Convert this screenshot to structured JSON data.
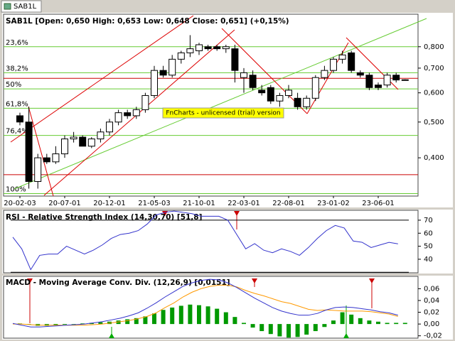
{
  "window": {
    "tab": "SAB1L"
  },
  "chart_data": [
    {
      "type": "candlestick",
      "title": "SAB1L [Open: 0,650  High: 0,653  Low: 0,648  Close: 0,651] (+0,15%)",
      "watermark": "FnCharts - unlicensed (trial) version",
      "categories": [
        "20-02-03",
        null,
        null,
        null,
        null,
        "20-07-01",
        null,
        null,
        null,
        null,
        "20-12-01",
        null,
        null,
        null,
        null,
        "21-05-03",
        null,
        null,
        null,
        null,
        "21-10-01",
        null,
        null,
        null,
        null,
        "22-03-01",
        null,
        null,
        null,
        null,
        "22-08-01",
        null,
        null,
        null,
        null,
        "23-01-02",
        null,
        null,
        null,
        null,
        "23-06-01",
        null,
        null,
        null
      ],
      "open": [
        0.52,
        0.5,
        0.345,
        0.4,
        0.39,
        0.41,
        0.45,
        0.455,
        0.43,
        0.45,
        0.47,
        0.5,
        0.53,
        0.52,
        0.54,
        0.59,
        0.69,
        0.67,
        0.74,
        0.77,
        0.78,
        0.8,
        0.8,
        0.79,
        0.79,
        0.66,
        0.67,
        0.61,
        0.62,
        0.57,
        0.59,
        0.58,
        0.55,
        0.58,
        0.66,
        0.69,
        0.74,
        0.77,
        0.68,
        0.67,
        0.63,
        0.63,
        0.67,
        0.65
      ],
      "high": [
        0.53,
        0.55,
        0.41,
        0.41,
        0.43,
        0.46,
        0.47,
        0.46,
        0.455,
        0.48,
        0.51,
        0.54,
        0.54,
        0.55,
        0.6,
        0.71,
        0.71,
        0.76,
        0.78,
        0.86,
        0.82,
        0.81,
        0.81,
        0.81,
        0.81,
        0.7,
        0.69,
        0.63,
        0.63,
        0.6,
        0.63,
        0.6,
        0.59,
        0.67,
        0.71,
        0.75,
        0.78,
        0.78,
        0.69,
        0.68,
        0.64,
        0.68,
        0.68,
        0.653
      ],
      "low": [
        0.49,
        0.33,
        0.33,
        0.385,
        0.385,
        0.4,
        0.44,
        0.43,
        0.425,
        0.44,
        0.46,
        0.49,
        0.51,
        0.51,
        0.53,
        0.58,
        0.66,
        0.66,
        0.72,
        0.75,
        0.76,
        0.78,
        0.78,
        0.77,
        0.64,
        0.6,
        0.61,
        0.59,
        0.56,
        0.55,
        0.58,
        0.54,
        0.54,
        0.57,
        0.65,
        0.68,
        0.72,
        0.68,
        0.66,
        0.61,
        0.61,
        0.62,
        0.64,
        0.648
      ],
      "close": [
        0.5,
        0.345,
        0.4,
        0.39,
        0.41,
        0.45,
        0.455,
        0.43,
        0.45,
        0.47,
        0.5,
        0.53,
        0.52,
        0.54,
        0.59,
        0.69,
        0.67,
        0.74,
        0.77,
        0.79,
        0.81,
        0.79,
        0.79,
        0.8,
        0.69,
        0.68,
        0.62,
        0.6,
        0.57,
        0.59,
        0.61,
        0.55,
        0.58,
        0.66,
        0.69,
        0.74,
        0.76,
        0.69,
        0.67,
        0.62,
        0.62,
        0.67,
        0.65,
        0.651
      ],
      "up_color": "#ffffff",
      "down_color": "#000000",
      "ylim": [
        0.315,
        0.98
      ],
      "log_scale": true,
      "yticks": [
        {
          "value": 0.8,
          "label": "0,800"
        },
        {
          "value": 0.7,
          "label": "0,700"
        },
        {
          "value": 0.6,
          "label": "0,600"
        },
        {
          "value": 0.5,
          "label": "0,500"
        },
        {
          "value": 0.4,
          "label": "0,400"
        }
      ],
      "fib_levels": [
        {
          "value": 0.8,
          "label": "23,6%"
        },
        {
          "value": 0.68,
          "label": "38,2%"
        },
        {
          "value": 0.615,
          "label": "50%"
        },
        {
          "value": 0.545,
          "label": "61,8%"
        },
        {
          "value": 0.46,
          "label": "76,4%"
        },
        {
          "value": 0.32,
          "label": "100%"
        }
      ],
      "fib_color": "#66cc33",
      "reference_lines": [
        0.657,
        0.36
      ],
      "reference_color": "#cc0000"
    },
    {
      "type": "line",
      "title": "RSI - Relative Strength Index (14,30,70) [51,8]",
      "values": [
        57,
        48,
        32,
        43,
        44,
        44,
        50,
        47,
        44,
        47,
        51,
        56,
        59,
        60,
        62,
        67,
        74,
        76,
        77,
        76,
        75,
        73,
        73,
        73,
        70,
        59,
        48,
        52,
        47,
        45,
        48,
        46,
        43,
        49,
        56,
        62,
        66,
        64,
        54,
        53,
        49,
        51,
        53,
        51.8
      ],
      "color": "#3333cc",
      "ylim": [
        29.6,
        77.6
      ],
      "yticks": [
        70,
        60,
        50,
        40
      ],
      "levels": [
        70,
        30
      ]
    },
    {
      "type": "macd",
      "title": "MACD - Moving Average Conv. Div. (12,26,9) [0,0151]",
      "histogram": [
        0.001,
        -0.001,
        -0.003,
        -0.003,
        -0.002,
        -0.001,
        0,
        0.001,
        0.002,
        0.003,
        0.004,
        0.006,
        0.008,
        0.01,
        0.013,
        0.018,
        0.024,
        0.028,
        0.031,
        0.033,
        0.032,
        0.03,
        0.026,
        0.02,
        0.012,
        0.002,
        -0.006,
        -0.012,
        -0.017,
        -0.021,
        -0.023,
        -0.022,
        -0.018,
        -0.012,
        -0.005,
        0.006,
        0.02,
        0.016,
        0.01,
        0.006,
        0.004,
        0.002,
        0.002,
        0.002
      ],
      "macd": [
        0.001,
        -0.002,
        -0.005,
        -0.005,
        -0.004,
        -0.003,
        -0.002,
        -0.001,
        0.0,
        0.002,
        0.004,
        0.007,
        0.01,
        0.014,
        0.019,
        0.027,
        0.036,
        0.046,
        0.055,
        0.064,
        0.07,
        0.074,
        0.076,
        0.075,
        0.07,
        0.062,
        0.053,
        0.044,
        0.036,
        0.028,
        0.022,
        0.018,
        0.015,
        0.015,
        0.018,
        0.024,
        0.028,
        0.029,
        0.028,
        0.026,
        0.024,
        0.021,
        0.019,
        0.0151
      ],
      "signal": [
        0.0,
        0.0,
        -0.001,
        -0.002,
        -0.002,
        -0.002,
        -0.002,
        -0.002,
        -0.002,
        -0.001,
        0.0,
        0.002,
        0.004,
        0.006,
        0.009,
        0.013,
        0.019,
        0.028,
        0.036,
        0.046,
        0.054,
        0.06,
        0.064,
        0.066,
        0.066,
        0.063,
        0.057,
        0.052,
        0.048,
        0.043,
        0.038,
        0.035,
        0.03,
        0.025,
        0.023,
        0.024,
        0.023,
        0.022,
        0.022,
        0.022,
        0.021,
        0.019,
        0.017,
        0.013
      ],
      "histogram_color": "#009900",
      "macd_color": "#3333cc",
      "signal_color": "#ff9900",
      "ylim": [
        -0.024,
        0.081
      ],
      "yticks": [
        {
          "value": 0.06,
          "label": "0,06"
        },
        {
          "value": 0.04,
          "label": "0,04"
        },
        {
          "value": 0.02,
          "label": "0,02"
        },
        {
          "value": 0,
          "label": "0,00"
        },
        {
          "value": -0.02,
          "label": "-0,02"
        }
      ]
    }
  ]
}
